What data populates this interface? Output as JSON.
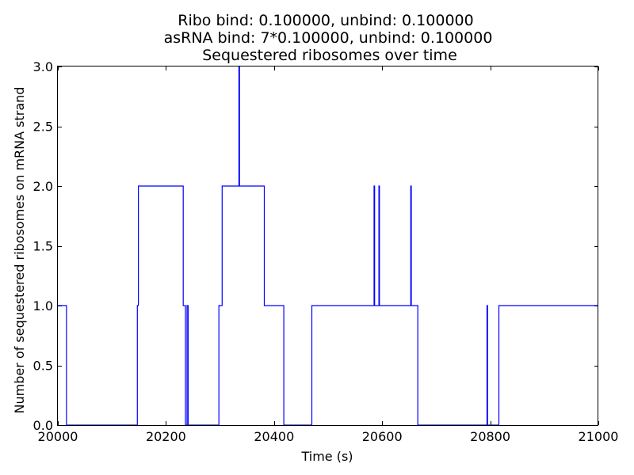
{
  "chart_data": {
    "type": "line",
    "step": "post",
    "title_lines": [
      "Ribo bind: 0.100000, unbind: 0.100000",
      "asRNA bind: 7*0.100000, unbind: 0.100000",
      "Sequestered ribosomes over time"
    ],
    "xlabel": "Time (s)",
    "ylabel": "Number of sequestered ribosomes on mRNA strand",
    "xlim": [
      20000,
      21000
    ],
    "ylim": [
      0,
      3
    ],
    "xticks": [
      20000,
      20200,
      20400,
      20600,
      20800,
      21000
    ],
    "yticks": [
      "0.0",
      "0.5",
      "1.0",
      "1.5",
      "2.0",
      "2.5",
      "3.0"
    ],
    "grid": false,
    "color": "#0000ff",
    "series": [
      {
        "name": "sequestered ribosomes",
        "x": [
          20000,
          20016,
          20147,
          20149,
          20232,
          20236,
          20239,
          20241,
          20243,
          20298,
          20304,
          20335,
          20336,
          20382,
          20418,
          20470,
          20585,
          20586,
          20594,
          20595,
          20653,
          20654,
          20666,
          20794,
          20795,
          20816,
          21000
        ],
        "y": [
          1,
          0,
          1,
          2,
          1,
          0,
          1,
          0,
          0,
          1,
          2,
          3,
          2,
          1,
          0,
          1,
          2,
          1,
          2,
          1,
          2,
          1,
          0,
          1,
          0,
          1,
          1
        ]
      }
    ]
  }
}
